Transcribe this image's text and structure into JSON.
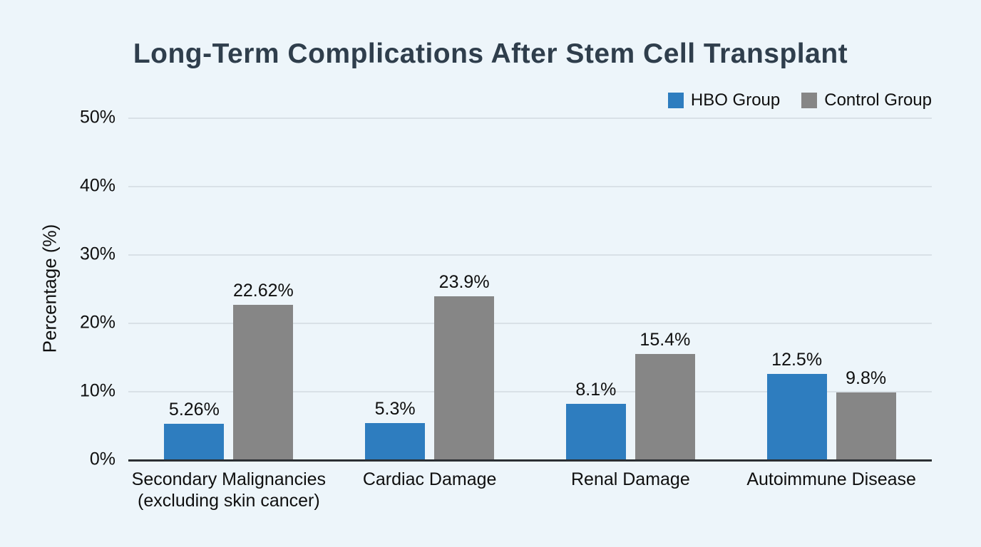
{
  "page": {
    "background": "#edf5fa"
  },
  "chart_data": {
    "type": "bar",
    "title": "Long-Term Complications After Stem Cell Transplant",
    "xlabel": "",
    "ylabel": "Percentage (%)",
    "ylim": [
      0,
      50
    ],
    "yticks": [
      "50%",
      "40%",
      "30%",
      "20%",
      "10%",
      "0%"
    ],
    "grid": true,
    "legend_position": "top-right",
    "categories": [
      "Secondary Malignancies (excluding skin cancer)",
      "Cardiac Damage",
      "Renal Damage",
      "Autoimmune Disease"
    ],
    "category_lines": [
      [
        "Secondary Malignancies",
        "(excluding skin cancer)"
      ],
      [
        "Cardiac Damage"
      ],
      [
        "Renal Damage"
      ],
      [
        "Autoimmune Disease"
      ]
    ],
    "series": [
      {
        "name": "HBO Group",
        "color": "#2e7dbf",
        "values": [
          5.26,
          5.3,
          8.1,
          12.5
        ],
        "labels": [
          "5.26%",
          "5.3%",
          "8.1%",
          "12.5%"
        ]
      },
      {
        "name": "Control Group",
        "color": "#868686",
        "values": [
          22.62,
          23.9,
          15.4,
          9.8
        ],
        "labels": [
          "22.62%",
          "23.9%",
          "15.4%",
          "9.8%"
        ]
      }
    ],
    "colors": {
      "title": "#2f3e4c",
      "gridline": "#d9e1e7",
      "axis_line": "#2b2f33",
      "text": "#0f0f0f"
    }
  }
}
